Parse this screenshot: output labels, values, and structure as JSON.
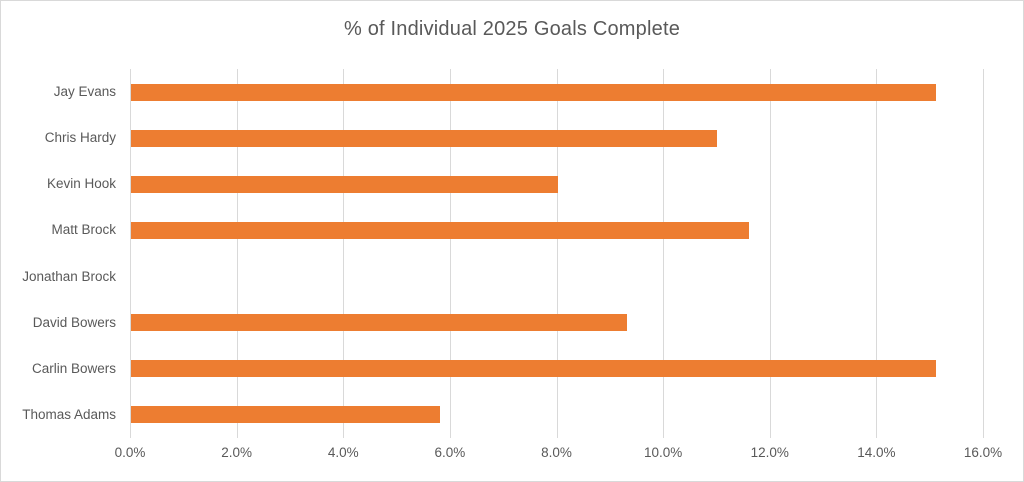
{
  "chart_data": {
    "type": "bar",
    "orientation": "horizontal",
    "title": "% of Individual 2025 Goals Complete",
    "categories": [
      "Jay Evans",
      "Chris Hardy",
      "Kevin Hook",
      "Matt Brock",
      "Jonathan Brock",
      "David Bowers",
      "Carlin Bowers",
      "Thomas Adams"
    ],
    "values": [
      15.1,
      11.0,
      8.0,
      11.6,
      0.0,
      9.3,
      15.1,
      5.8
    ],
    "value_unit": "%",
    "xlim": [
      0,
      16
    ],
    "x_tick_labels": [
      "0.0%",
      "2.0%",
      "4.0%",
      "6.0%",
      "8.0%",
      "10.0%",
      "12.0%",
      "14.0%",
      "16.0%"
    ],
    "grid": "vertical",
    "legend": "none",
    "colors": {
      "bar": "#ed7d31",
      "text": "#595959",
      "gridline": "#d9d9d9",
      "border": "#d9d9d9",
      "background": "#ffffff"
    }
  }
}
